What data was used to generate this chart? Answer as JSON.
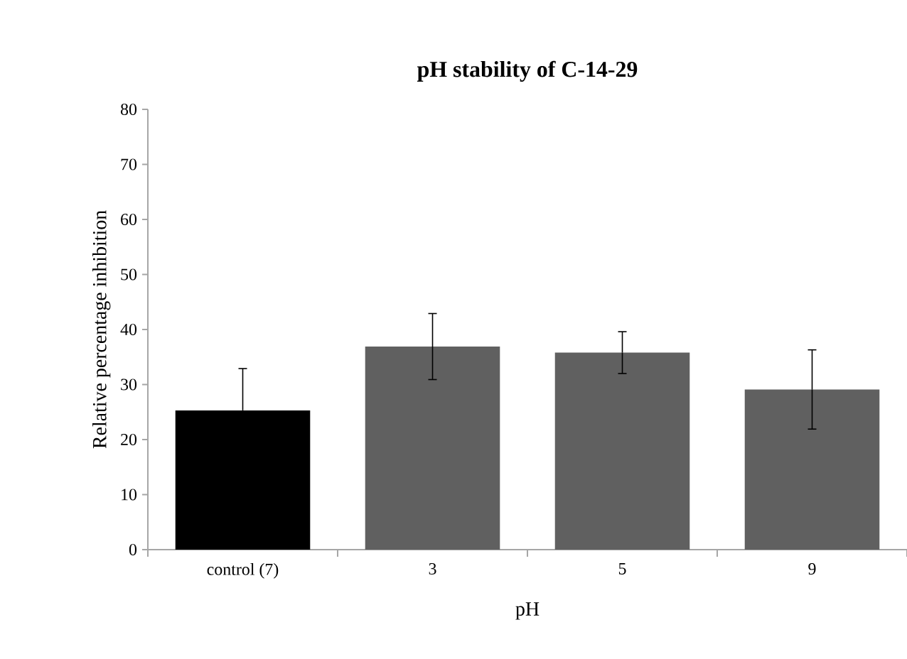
{
  "chart_data": {
    "type": "bar",
    "title": "**pH stability of C-14-29**",
    "xlabel": "pH",
    "ylabel": "Relative percentage inhibition",
    "categories": [
      "control (7)",
      "3",
      "5",
      "9"
    ],
    "values": [
      25.3,
      36.9,
      35.8,
      29.1
    ],
    "errors": [
      7.6,
      6.0,
      3.8,
      7.2
    ],
    "colors": [
      "#000000",
      "#606060",
      "#606060",
      "#606060"
    ],
    "ylim": [
      0,
      80
    ],
    "yticks": [
      0,
      10,
      20,
      30,
      40,
      50,
      60,
      70,
      80
    ],
    "grid": false
  }
}
